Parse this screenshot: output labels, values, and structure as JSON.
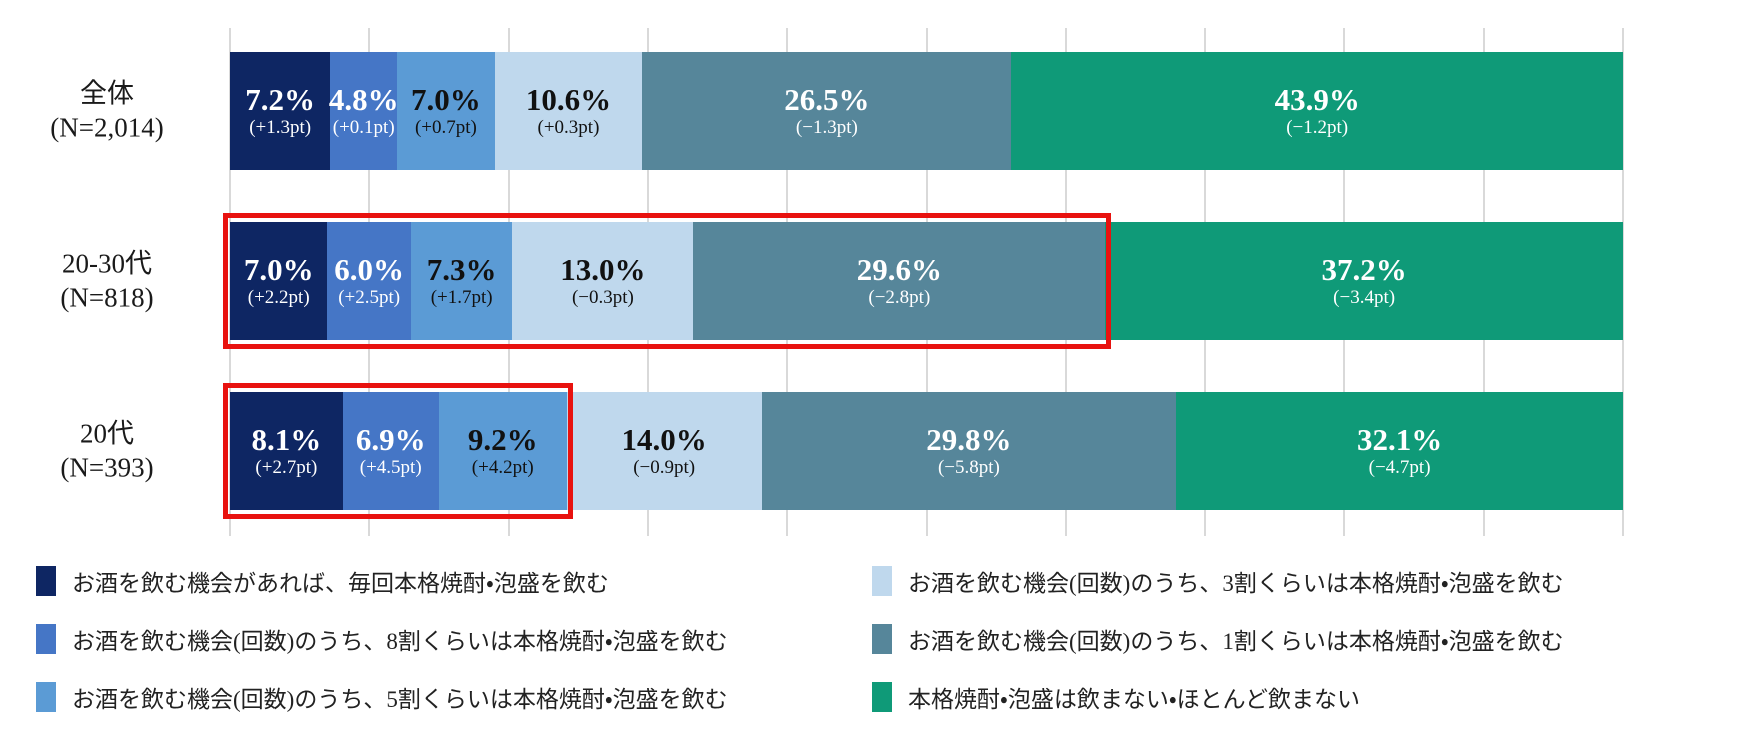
{
  "chart_data": {
    "type": "bar",
    "subtype": "horizontal_stacked_percent",
    "title": "",
    "xlabel": "",
    "ylabel": "",
    "axis": {
      "min": 0,
      "max": 100,
      "gridline_step": 10,
      "grid": true,
      "gridline_color": "#d9d9d9"
    },
    "highlight_color": "#e8120f",
    "legend_position": "bottom-two-columns",
    "legend": [
      {
        "label": "お酒を飲む機会があれば、毎回本格焼酎・泡盛を飲む",
        "color": "#0e2663",
        "value_text": "light"
      },
      {
        "label": "お酒を飲む機会(回数)のうち、8割くらいは本格焼酎・泡盛を飲む",
        "color": "#4576c6",
        "value_text": "light"
      },
      {
        "label": "お酒を飲む機会(回数)のうち、5割くらいは本格焼酎・泡盛を飲む",
        "color": "#5b9bd5",
        "value_text": "dark"
      },
      {
        "label": "お酒を飲む機会(回数)のうち、3割くらいは本格焼酎・泡盛を飲む",
        "color": "#bfd8ed",
        "value_text": "dark"
      },
      {
        "label": "お酒を飲む機会(回数)のうち、1割くらいは本格焼酎・泡盛を飲む",
        "color": "#56869a",
        "value_text": "light"
      },
      {
        "label": "本格焼酎・泡盛は飲まない・ほとんど飲まない",
        "color": "#0f9a78",
        "value_text": "light"
      }
    ],
    "legend_columns": [
      [
        0,
        1,
        2
      ],
      [
        3,
        4,
        5
      ]
    ],
    "rows": [
      {
        "label_line1": "全体",
        "label_line2": "(N=2,014)",
        "highlight_segments": 0,
        "values": [
          7.2,
          4.8,
          7.0,
          10.6,
          26.5,
          43.9
        ],
        "value_labels": [
          "7.2%",
          "4.8%",
          "7.0%",
          "10.6%",
          "26.5%",
          "43.9%"
        ],
        "change_labels": [
          "(+1.3pt)",
          "(+0.1pt)",
          "(+0.7pt)",
          "(+0.3pt)",
          "(−1.3pt)",
          "(−1.2pt)"
        ]
      },
      {
        "label_line1": "20-30代",
        "label_line2": "(N=818)",
        "highlight_segments": 5,
        "values": [
          7.0,
          6.0,
          7.3,
          13.0,
          29.6,
          37.2
        ],
        "value_labels": [
          "7.0%",
          "6.0%",
          "7.3%",
          "13.0%",
          "29.6%",
          "37.2%"
        ],
        "change_labels": [
          "(+2.2pt)",
          "(+2.5pt)",
          "(+1.7pt)",
          "(−0.3pt)",
          "(−2.8pt)",
          "(−3.4pt)"
        ]
      },
      {
        "label_line1": "20代",
        "label_line2": "(N=393)",
        "highlight_segments": 3,
        "values": [
          8.1,
          6.9,
          9.2,
          14.0,
          29.8,
          32.1
        ],
        "value_labels": [
          "8.1%",
          "6.9%",
          "9.2%",
          "14.0%",
          "29.8%",
          "32.1%"
        ],
        "change_labels": [
          "(+2.7pt)",
          "(+4.5pt)",
          "(+4.2pt)",
          "(−0.9pt)",
          "(−5.8pt)",
          "(−4.7pt)"
        ]
      }
    ]
  }
}
